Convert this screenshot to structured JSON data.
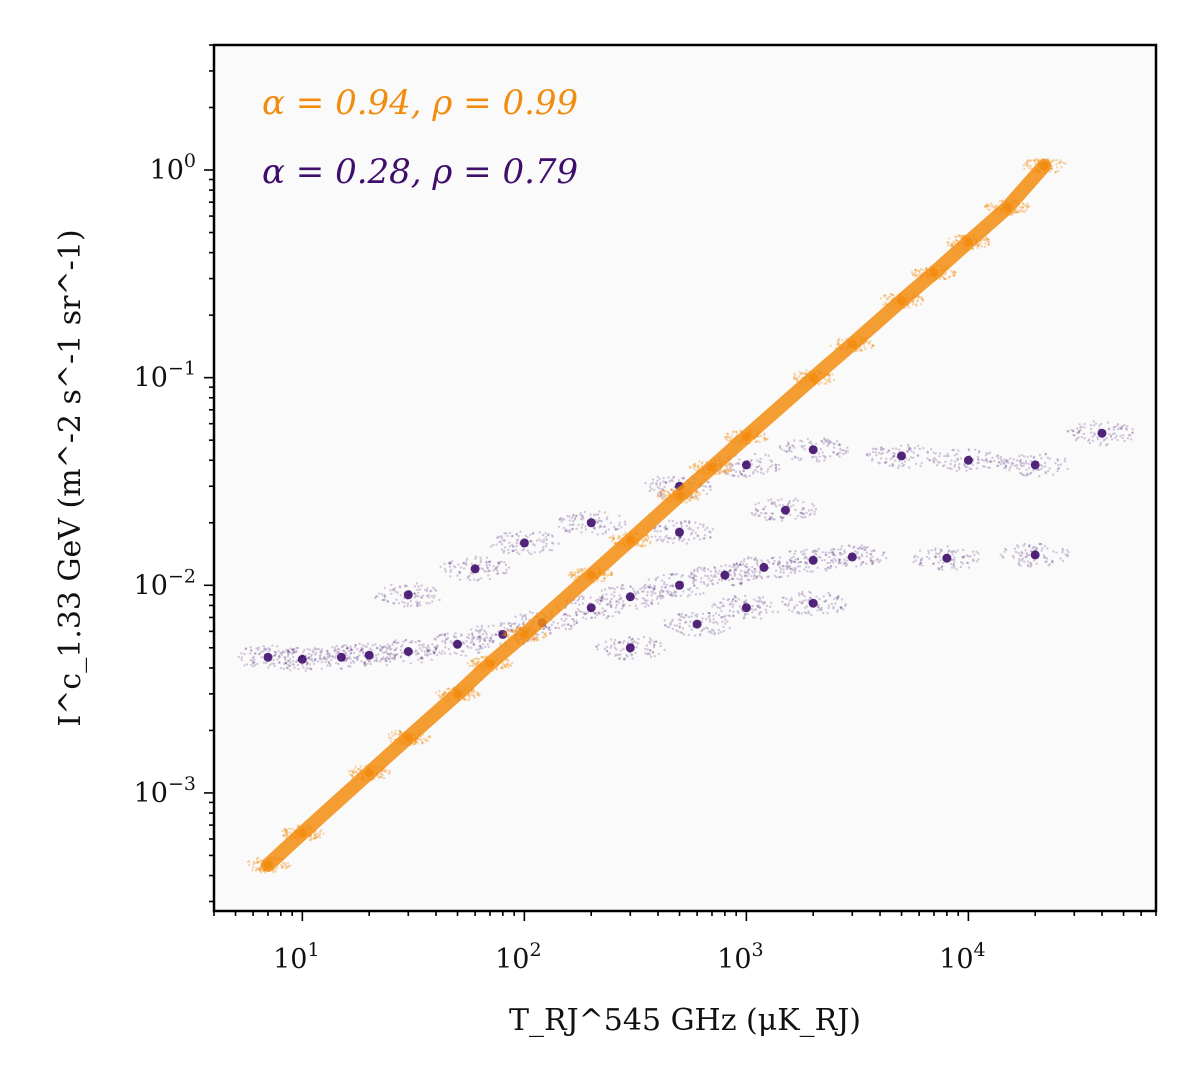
{
  "chart_data": {
    "type": "scatter",
    "xlabel": "T_RJ^545 GHz (μK_RJ)",
    "ylabel": "I^c_1.33 GeV (m^-2 s^-1 sr^-1)",
    "x_scale": "log",
    "y_scale": "log",
    "xlim": [
      4,
      70000
    ],
    "ylim": [
      0.00027,
      4
    ],
    "grid": false,
    "x_ticks": [
      {
        "base": "10",
        "exp": "1",
        "value": 10
      },
      {
        "base": "10",
        "exp": "2",
        "value": 100
      },
      {
        "base": "10",
        "exp": "3",
        "value": 1000
      },
      {
        "base": "10",
        "exp": "4",
        "value": 10000
      }
    ],
    "y_ticks": [
      {
        "base": "10",
        "exp": "−3",
        "value": 0.001
      },
      {
        "base": "10",
        "exp": "−2",
        "value": 0.01
      },
      {
        "base": "10",
        "exp": "−1",
        "value": 0.1
      },
      {
        "base": "10",
        "exp": "0",
        "value": 1
      }
    ],
    "series": [
      {
        "color": "#3f0d6b",
        "alpha": 0.28,
        "rho": 0.79,
        "annotation": "α = 0.28, ρ = 0.79",
        "points": [
          [
            7,
            0.0045
          ],
          [
            10,
            0.0044
          ],
          [
            15,
            0.0045
          ],
          [
            20,
            0.0046
          ],
          [
            30,
            0.0048
          ],
          [
            50,
            0.0052
          ],
          [
            80,
            0.0058
          ],
          [
            120,
            0.0066
          ],
          [
            200,
            0.0078
          ],
          [
            300,
            0.0088
          ],
          [
            500,
            0.01
          ],
          [
            800,
            0.0112
          ],
          [
            1200,
            0.0122
          ],
          [
            2000,
            0.0132
          ],
          [
            3000,
            0.0137
          ],
          [
            8000,
            0.0135
          ],
          [
            20000,
            0.014
          ],
          [
            30,
            0.009
          ],
          [
            60,
            0.012
          ],
          [
            100,
            0.016
          ],
          [
            200,
            0.02
          ],
          [
            500,
            0.03
          ],
          [
            1000,
            0.038
          ],
          [
            2000,
            0.045
          ],
          [
            5000,
            0.042
          ],
          [
            10000,
            0.04
          ],
          [
            20000,
            0.038
          ],
          [
            40000,
            0.054
          ],
          [
            300,
            0.005
          ],
          [
            600,
            0.0065
          ],
          [
            1000,
            0.0078
          ],
          [
            2000,
            0.0082
          ],
          [
            500,
            0.018
          ],
          [
            1500,
            0.023
          ]
        ]
      },
      {
        "color": "#f28c0f",
        "alpha": 0.94,
        "rho": 0.99,
        "annotation": "α = 0.94, ρ = 0.99",
        "points": [
          [
            7,
            0.00045
          ],
          [
            10,
            0.00064
          ],
          [
            20,
            0.00125
          ],
          [
            30,
            0.00185
          ],
          [
            50,
            0.003
          ],
          [
            70,
            0.0042
          ],
          [
            100,
            0.0058
          ],
          [
            200,
            0.0112
          ],
          [
            300,
            0.0165
          ],
          [
            500,
            0.027
          ],
          [
            700,
            0.037
          ],
          [
            1000,
            0.052
          ],
          [
            2000,
            0.1
          ],
          [
            3000,
            0.145
          ],
          [
            5000,
            0.235
          ],
          [
            7000,
            0.32
          ],
          [
            10000,
            0.45
          ],
          [
            15000,
            0.66
          ],
          [
            22000,
            1.05
          ]
        ]
      }
    ]
  }
}
